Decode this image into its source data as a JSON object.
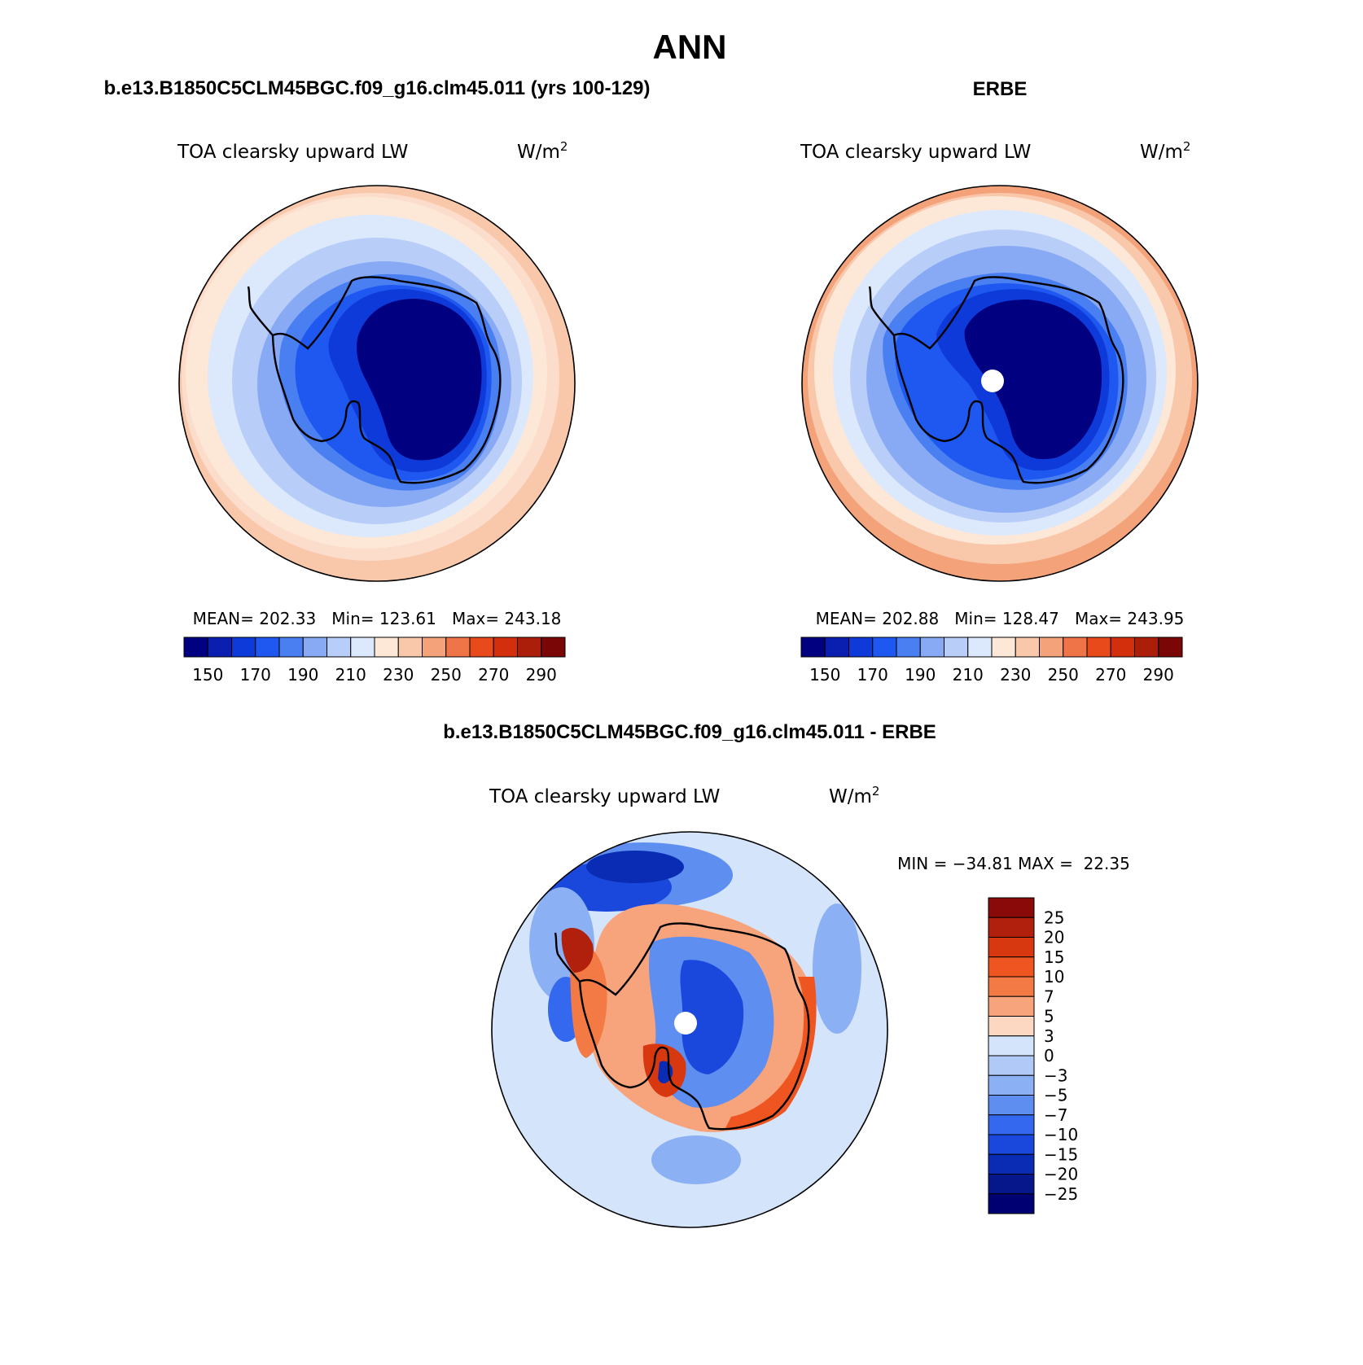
{
  "figure": {
    "season": "ANN"
  },
  "panels": {
    "model": {
      "title": "b.e13.B1850C5CLM45BGC.f09_g16.clm45.011 (yrs 100-129)",
      "variable": "TOA clearsky upward LW",
      "units": "W/m",
      "units_exp": "2",
      "stats": "MEAN= 202.33   Min= 123.61   Max= 243.18"
    },
    "obs": {
      "title": "ERBE",
      "variable": "TOA clearsky upward LW",
      "units": "W/m",
      "units_exp": "2",
      "stats": "MEAN= 202.88   Min= 128.47   Max= 243.95"
    },
    "diff": {
      "title": "b.e13.B1850C5CLM45BGC.f09_g16.clm45.011 - ERBE",
      "variable": "TOA clearsky upward LW",
      "units": "W/m",
      "units_exp": "2",
      "stats": "MIN = −34.81 MAX =  22.35"
    }
  },
  "chart_data": [
    {
      "type": "heatmap",
      "title": "TOA clearsky upward LW",
      "projection": "south-polar-stereographic",
      "legend_placement": "bottom",
      "colorbar_ticks": [
        "150",
        "170",
        "190",
        "210",
        "230",
        "250",
        "270",
        "290"
      ],
      "levels": [
        140,
        150,
        160,
        170,
        180,
        190,
        200,
        210,
        220,
        230,
        240,
        250,
        260,
        270,
        280,
        290,
        300
      ],
      "colors": [
        "#000080",
        "#0a1fb0",
        "#0d3ad8",
        "#1f58f0",
        "#4a7ff2",
        "#88aaf5",
        "#b8cdf8",
        "#dce8fb",
        "#fde8d8",
        "#f9c8ab",
        "#f3a27a",
        "#ef7447",
        "#e84a1c",
        "#d32f0d",
        "#ab1e0a",
        "#7a0606"
      ],
      "mean": 202.33,
      "min": 123.61,
      "max": 243.18
    },
    {
      "type": "heatmap",
      "title": "TOA clearsky upward LW",
      "projection": "south-polar-stereographic",
      "legend_placement": "bottom",
      "colorbar_ticks": [
        "150",
        "170",
        "190",
        "210",
        "230",
        "250",
        "270",
        "290"
      ],
      "levels": [
        140,
        150,
        160,
        170,
        180,
        190,
        200,
        210,
        220,
        230,
        240,
        250,
        260,
        270,
        280,
        290,
        300
      ],
      "colors": [
        "#000080",
        "#0a1fb0",
        "#0d3ad8",
        "#1f58f0",
        "#4a7ff2",
        "#88aaf5",
        "#b8cdf8",
        "#dce8fb",
        "#fde8d8",
        "#f9c8ab",
        "#f3a27a",
        "#ef7447",
        "#e84a1c",
        "#d32f0d",
        "#ab1e0a",
        "#7a0606"
      ],
      "mean": 202.88,
      "min": 128.47,
      "max": 243.95
    },
    {
      "type": "heatmap",
      "title": "TOA clearsky upward LW",
      "projection": "south-polar-stereographic",
      "legend_placement": "right",
      "colorbar_ticks": [
        "25",
        "20",
        "15",
        "10",
        "7",
        "5",
        "3",
        "0",
        "−3",
        "−5",
        "−7",
        "−10",
        "−15",
        "−20",
        "−25"
      ],
      "colors_top_to_bottom": [
        "#8a0a0a",
        "#b0200c",
        "#d8380f",
        "#ee5520",
        "#f47a45",
        "#f7a47d",
        "#fcd8c2",
        "#d4e4fb",
        "#b0c9f7",
        "#8cb0f4",
        "#5d8ef0",
        "#3468ee",
        "#1a48dc",
        "#0a2cb4",
        "#05178a",
        "#000072"
      ],
      "min": -34.81,
      "max": 22.35
    }
  ]
}
